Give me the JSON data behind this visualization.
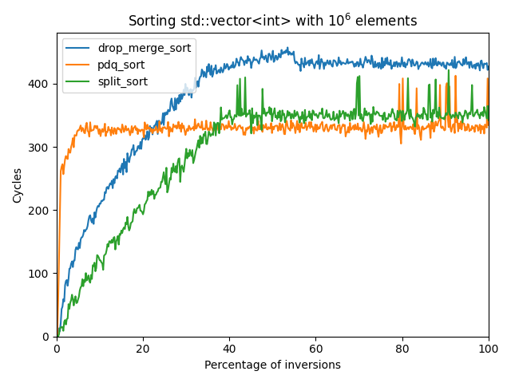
{
  "title": "Sorting std::vector<int> with $10^6$ elements",
  "xlabel": "Percentage of inversions",
  "ylabel": "Cycles",
  "xlim": [
    0,
    100
  ],
  "ylim": [
    0,
    480
  ],
  "legend_labels": [
    "drop_merge_sort",
    "pdq_sort",
    "split_sort"
  ],
  "colors": [
    "#1f77b4",
    "#ff7f0e",
    "#2ca02c"
  ],
  "linewidth": 1.5
}
